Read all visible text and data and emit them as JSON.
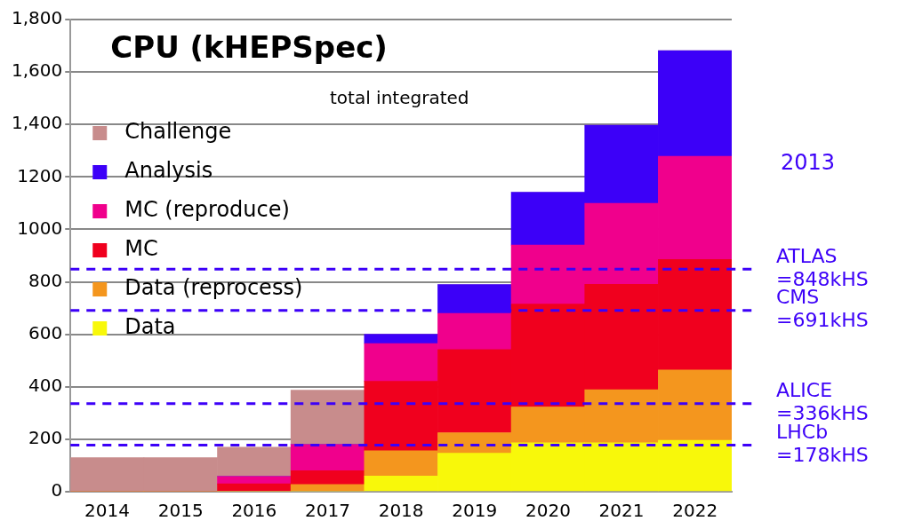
{
  "chart_data": {
    "type": "bar",
    "title": "CPU (kHEPSpec)",
    "subtitle": "total integrated",
    "stacked": true,
    "categories": [
      "2014",
      "2015",
      "2016",
      "2017",
      "2018",
      "2019",
      "2020",
      "2021",
      "2022"
    ],
    "series": [
      {
        "name": "Data",
        "color": "#f8f80a",
        "values": [
          0,
          0,
          0,
          0,
          60,
          147,
          187,
          187,
          196
        ]
      },
      {
        "name": "Data (reprocess)",
        "color": "#f4961e",
        "values": [
          0,
          0,
          0,
          28,
          96,
          78,
          136,
          202,
          268
        ]
      },
      {
        "name": "MC",
        "color": "#f0001e",
        "values": [
          0,
          0,
          30,
          52,
          265,
          317,
          392,
          402,
          421
        ]
      },
      {
        "name": "MC (reproduce)",
        "color": "#f0008c",
        "values": [
          0,
          0,
          28,
          100,
          144,
          138,
          225,
          308,
          394
        ]
      },
      {
        "name": "Analysis",
        "color": "#3c00f8",
        "values": [
          0,
          0,
          0,
          0,
          35,
          110,
          202,
          298,
          402
        ]
      },
      {
        "name": "Challenge",
        "color": "#c88c8c",
        "values": [
          130,
          130,
          112,
          207,
          0,
          0,
          0,
          0,
          0
        ]
      }
    ],
    "ylim": [
      0,
      1800
    ],
    "yticks": [
      0,
      200,
      400,
      600,
      800,
      1000,
      1200,
      {
        "value": 1400,
        "label": "1,400"
      },
      {
        "value": 1600,
        "label": "1,600"
      },
      {
        "value": 1800,
        "label": "1,800"
      }
    ],
    "grid": "y",
    "legend": "top left",
    "ref_lines": [
      {
        "axis": "y",
        "value": 848,
        "label": "ATLAS =848kHS",
        "color": "#3c00f8",
        "line_style": "dashed"
      },
      {
        "axis": "y",
        "value": 691,
        "label": "CMS =691kHS",
        "color": "#3c00f8",
        "line_style": "dashed"
      },
      {
        "axis": "y",
        "value": 336,
        "label": "ALICE =336kHS",
        "color": "#3c00f8",
        "line_style": "dashed"
      },
      {
        "axis": "y",
        "value": 178,
        "label": "LHCb =178kHS",
        "color": "#3c00f8",
        "line_style": "dashed"
      }
    ],
    "annotations": [
      "2013"
    ]
  }
}
